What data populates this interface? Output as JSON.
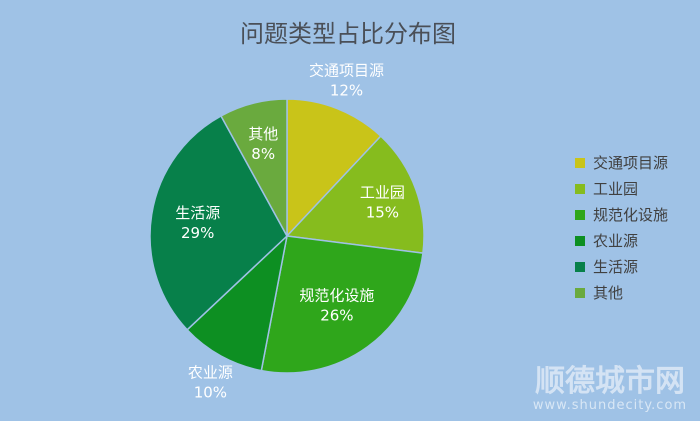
{
  "chart_data": {
    "type": "pie",
    "title": "问题类型占比分布图",
    "categories": [
      "交通项目源",
      "工业园",
      "规范化设施",
      "农业源",
      "生活源",
      "其他"
    ],
    "values": [
      12,
      15,
      26,
      10,
      29,
      8
    ],
    "value_labels": [
      "12%",
      "15%",
      "26%",
      "10%",
      "29%",
      "8%"
    ],
    "colors": [
      "#c9c419",
      "#86bc1e",
      "#2fa61b",
      "#0d8f22",
      "#07804a",
      "#6aaa3e"
    ],
    "legend_position": "right"
  },
  "watermark": {
    "text": "顺德城市网",
    "url": "www.shundecity.com"
  }
}
